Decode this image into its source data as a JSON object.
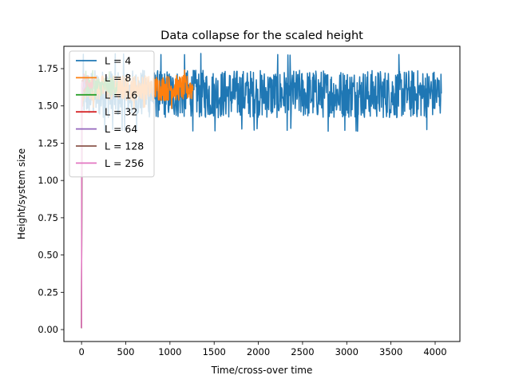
{
  "chart_data": {
    "type": "line",
    "title": "Data collapse for the scaled height",
    "xlabel": "Time/cross-over time",
    "ylabel": "Height/system size",
    "xlim": [
      -200,
      4280
    ],
    "ylim": [
      -0.08,
      1.9
    ],
    "xticks": [
      0,
      500,
      1000,
      1500,
      2000,
      2500,
      3000,
      3500,
      4000
    ],
    "yticks": [
      0.0,
      0.25,
      0.5,
      0.75,
      1.0,
      1.25,
      1.5,
      1.75
    ],
    "xtick_labels": [
      "0",
      "500",
      "1000",
      "1500",
      "2000",
      "2500",
      "3000",
      "3500",
      "4000"
    ],
    "ytick_labels": [
      "0.00",
      "0.25",
      "0.50",
      "0.75",
      "1.00",
      "1.25",
      "1.50",
      "1.75"
    ],
    "grid": false,
    "legend_position": "upper-left",
    "series": [
      {
        "name": "L = 4",
        "color": "#1f77b4",
        "x_end": 4070,
        "mean": 1.58,
        "min": 1.33,
        "max": 1.86
      },
      {
        "name": "L = 8",
        "color": "#ff7f0e",
        "x_end": 1260,
        "mean": 1.62,
        "min": 1.48,
        "max": 1.76
      },
      {
        "name": "L = 16",
        "color": "#2ca02c",
        "x_end": 400,
        "mean": 1.63,
        "min": 1.53,
        "max": 1.74
      },
      {
        "name": "L = 32",
        "color": "#d62728",
        "x_end": 130,
        "mean": 1.64,
        "min": 1.56,
        "max": 1.72
      },
      {
        "name": "L = 64",
        "color": "#9467bd",
        "x_end": 40,
        "mean": 1.64,
        "min": 1.58,
        "max": 1.7
      },
      {
        "name": "L = 128",
        "color": "#8c564b",
        "x_end": 14,
        "mean": 1.64,
        "min": 1.6,
        "max": 1.69
      },
      {
        "name": "L = 256",
        "color": "#e377c2",
        "x_end": 5,
        "mean": 1.64,
        "min": 1.61,
        "max": 1.68
      }
    ]
  }
}
